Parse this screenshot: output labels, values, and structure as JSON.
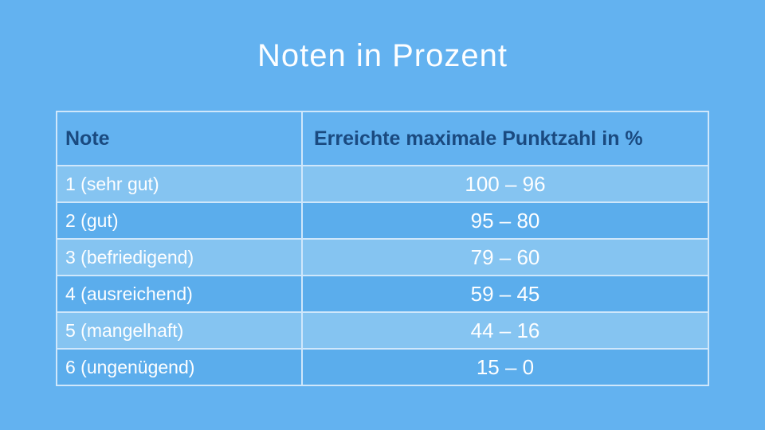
{
  "page": {
    "title": "Noten in Prozent",
    "background_color": "#63b2f0"
  },
  "table": {
    "columns": [
      "Note",
      "Erreichte maximale Punktzahl in %"
    ],
    "rows": [
      {
        "note": "1 (sehr gut)",
        "range": "100 – 96"
      },
      {
        "note": "2 (gut)",
        "range": "95 – 80"
      },
      {
        "note": "3 (befriedigend)",
        "range": "79 – 60"
      },
      {
        "note": "4 (ausreichend)",
        "range": "59 – 45"
      },
      {
        "note": "5 (mangelhaft)",
        "range": "44 – 16"
      },
      {
        "note": "6 (ungenügend)",
        "range": "15 – 0"
      }
    ],
    "colors": {
      "header_text": "#1a4a80",
      "row_text": "#fdfeff",
      "row_light": "#85c4f1",
      "row_dark": "#5badec",
      "border": "#cfe7fb"
    }
  },
  "chart_data": {
    "type": "table",
    "title": "Noten in Prozent",
    "columns": [
      "Note",
      "Erreichte maximale Punktzahl in %"
    ],
    "rows": [
      [
        "1 (sehr gut)",
        "100 – 96"
      ],
      [
        "2 (gut)",
        "95 – 80"
      ],
      [
        "3 (befriedigend)",
        "79 – 60"
      ],
      [
        "4 (ausreichend)",
        "59 – 45"
      ],
      [
        "5 (mangelhaft)",
        "44 – 16"
      ],
      [
        "6 (ungenügend)",
        "15 – 0"
      ]
    ],
    "grade_ranges": [
      {
        "grade": 1,
        "label": "sehr gut",
        "max_percent": 100,
        "min_percent": 96
      },
      {
        "grade": 2,
        "label": "gut",
        "max_percent": 95,
        "min_percent": 80
      },
      {
        "grade": 3,
        "label": "befriedigend",
        "max_percent": 79,
        "min_percent": 60
      },
      {
        "grade": 4,
        "label": "ausreichend",
        "max_percent": 59,
        "min_percent": 45
      },
      {
        "grade": 5,
        "label": "mangelhaft",
        "max_percent": 44,
        "min_percent": 16
      },
      {
        "grade": 6,
        "label": "ungenügend",
        "max_percent": 15,
        "min_percent": 0
      }
    ]
  }
}
